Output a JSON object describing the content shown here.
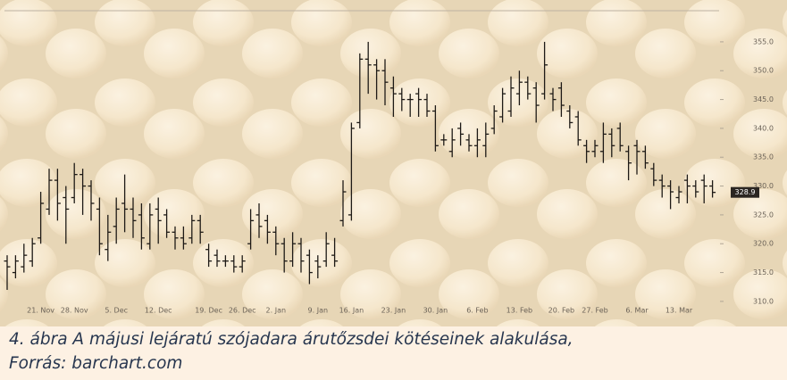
{
  "chart_data": {
    "type": "ohlc",
    "categories": [
      null,
      null,
      null,
      null,
      "21. Nov",
      null,
      null,
      null,
      "28. Nov",
      null,
      null,
      null,
      null,
      "5. Dec",
      null,
      null,
      null,
      null,
      "12. Dec",
      null,
      null,
      null,
      null,
      null,
      "19. Dec",
      null,
      null,
      null,
      "26. Dec",
      null,
      null,
      null,
      "2. Jan",
      null,
      null,
      null,
      null,
      "9. Jan",
      null,
      null,
      null,
      "16. Jan",
      null,
      null,
      null,
      null,
      "23. Jan",
      null,
      null,
      null,
      null,
      "30. Jan",
      null,
      null,
      null,
      null,
      "6. Feb",
      null,
      null,
      null,
      null,
      "13. Feb",
      null,
      null,
      null,
      null,
      "20. Feb",
      null,
      null,
      null,
      "27. Feb",
      null,
      null,
      null,
      null,
      "6. Mar",
      null,
      null,
      null,
      null,
      "13. Mar",
      null,
      null,
      null,
      null
    ],
    "open": [
      317,
      315,
      316,
      317,
      321,
      326,
      331,
      328,
      328,
      332,
      330,
      326,
      319,
      323,
      327,
      326,
      325,
      320,
      326,
      325,
      322,
      321,
      321,
      324,
      319,
      318,
      317,
      317,
      316,
      320,
      325,
      324,
      322,
      320,
      317,
      320,
      318,
      317,
      317,
      318,
      324,
      325,
      341,
      352,
      351,
      350,
      347,
      346,
      345,
      346,
      345,
      343,
      338,
      336,
      340,
      338,
      337,
      337,
      340,
      342,
      343,
      346,
      348,
      347,
      346,
      346,
      347,
      343,
      342,
      337,
      336,
      336,
      339,
      340,
      336,
      337,
      336,
      333,
      331,
      330,
      328,
      331,
      330,
      331,
      330
    ],
    "high": [
      318,
      318,
      320,
      321,
      329,
      333,
      333,
      330,
      334,
      333,
      331,
      328,
      325,
      328,
      332,
      328,
      327,
      327,
      328,
      326,
      323,
      323,
      325,
      325,
      320,
      319,
      318,
      318,
      318,
      326,
      327,
      325,
      323,
      321,
      322,
      321,
      319,
      318,
      322,
      321,
      331,
      341,
      353,
      355,
      352,
      352,
      349,
      347,
      346,
      347,
      346,
      344,
      339,
      340,
      341,
      339,
      340,
      341,
      344,
      347,
      349,
      350,
      349,
      348,
      355,
      347,
      348,
      344,
      343,
      338,
      338,
      341,
      340,
      341,
      337,
      338,
      337,
      334,
      332,
      331,
      330,
      332,
      331,
      332,
      331
    ],
    "low": [
      312,
      314,
      315,
      316,
      320,
      325,
      324,
      320,
      327,
      325,
      324,
      318,
      317,
      320,
      322,
      321,
      319,
      319,
      320,
      321,
      319,
      319,
      320,
      320,
      316,
      316,
      316,
      315,
      315,
      319,
      321,
      320,
      318,
      315,
      316,
      315,
      313,
      314,
      316,
      316,
      323,
      324,
      340,
      346,
      345,
      344,
      342,
      343,
      342,
      342,
      342,
      336,
      337,
      335,
      337,
      336,
      335,
      335,
      339,
      341,
      342,
      344,
      345,
      341,
      345,
      343,
      342,
      340,
      337,
      334,
      335,
      334,
      335,
      336,
      331,
      332,
      333,
      330,
      328,
      326,
      327,
      327,
      328,
      327,
      328
    ],
    "close": [
      316,
      317,
      318,
      320,
      327,
      331,
      327,
      326,
      332,
      330,
      327,
      320,
      322,
      326,
      326,
      324,
      321,
      325,
      324,
      322,
      321,
      320,
      324,
      322,
      317,
      317,
      317,
      316,
      317,
      324,
      323,
      322,
      320,
      317,
      320,
      317,
      315,
      316,
      320,
      317,
      329,
      340,
      352,
      351,
      350,
      348,
      346,
      345,
      345,
      345,
      343,
      337,
      338,
      338,
      339,
      337,
      338,
      339,
      343,
      346,
      347,
      348,
      346,
      344,
      351,
      345,
      344,
      341,
      338,
      336,
      337,
      339,
      337,
      337,
      334,
      336,
      334,
      331,
      330,
      329,
      329,
      330,
      329,
      330,
      328.9
    ],
    "color": "#1e1a16",
    "last_price": 328.9,
    "ylim": [
      308.9,
      360.4
    ],
    "yticks": [
      {
        "value": 310,
        "label": "310.0"
      },
      {
        "value": 315,
        "label": "315.0"
      },
      {
        "value": 320,
        "label": "320.0"
      },
      {
        "value": 325,
        "label": "325.0"
      },
      {
        "value": 330,
        "label": "330.0"
      },
      {
        "value": 335,
        "label": "335.0"
      },
      {
        "value": 340,
        "label": "340.0"
      },
      {
        "value": 345,
        "label": "345.0"
      },
      {
        "value": 350,
        "label": "350.0"
      },
      {
        "value": 355,
        "label": "355.0"
      }
    ]
  },
  "caption": {
    "line1": "4. ábra A májusi lejáratú szójadara árutőzsdei kötéseinek alakulása,",
    "line2": "Forrás: barchart.com"
  }
}
